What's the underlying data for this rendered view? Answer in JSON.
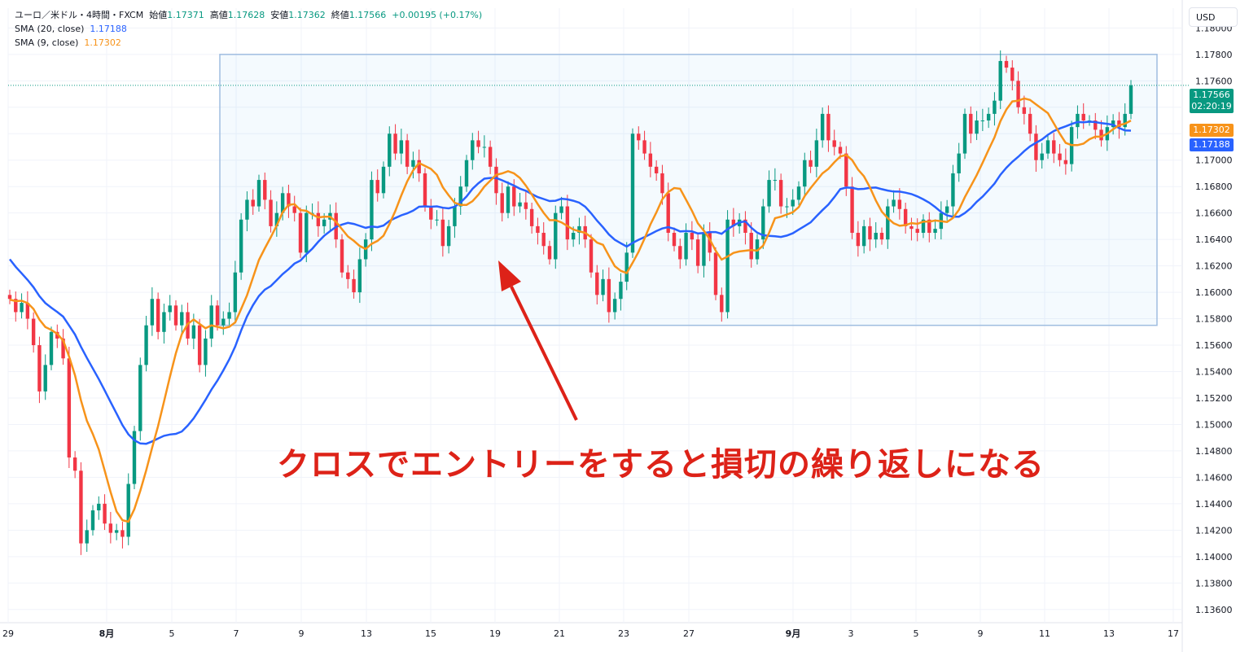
{
  "legend": {
    "symbol": "ユーロ／米ドル・4時間・FXCM",
    "open_label": "始値",
    "open": "1.17371",
    "high_label": "高値",
    "high": "1.17628",
    "low_label": "安値",
    "low": "1.17362",
    "close_label": "終値",
    "close": "1.17566",
    "change": "+0.00195 (+0.17%)",
    "sma20_label": "SMA (20, close)",
    "sma20_value": "1.17188",
    "sma9_label": "SMA (9, close)",
    "sma9_value": "1.17302"
  },
  "currency_button": "USD",
  "price_tags": {
    "last_price": "1.17566",
    "countdown": "02:20:19",
    "sma9": "1.17302",
    "sma20": "1.17188"
  },
  "annotation": "クロスでエントリーをすると損切の繰り返しになる",
  "colors": {
    "up": "#089981",
    "down": "#f23645",
    "sma20": "#2962ff",
    "sma9": "#f7931a",
    "annotation": "#dd2218",
    "range_box": "#9fbde0"
  },
  "chart_data": {
    "type": "candlestick",
    "title": "",
    "xlabel": "",
    "ylabel": "",
    "ylim": [
      1.135,
      1.1815
    ],
    "grid": true,
    "y_ticks": [
      "1.18000",
      "1.17800",
      "1.17600",
      "1.17400",
      "1.17200",
      "1.17000",
      "1.16800",
      "1.16600",
      "1.16400",
      "1.16200",
      "1.16000",
      "1.15800",
      "1.15600",
      "1.15400",
      "1.15200",
      "1.15000",
      "1.14800",
      "1.14600",
      "1.14400",
      "1.14200",
      "1.14000",
      "1.13800",
      "1.13600"
    ],
    "x_ticks": [
      "29",
      "8月",
      "5",
      "7",
      "9",
      "13",
      "15",
      "19",
      "21",
      "23",
      "27",
      "9月",
      "3",
      "5",
      "9",
      "11",
      "13",
      "17"
    ],
    "range_box": {
      "x_start_label": "7",
      "x_end_label": "17",
      "high": 1.178,
      "low": 1.1575
    },
    "series": [
      {
        "name": "SMA (20, close)",
        "last": 1.17188
      },
      {
        "name": "SMA (9, close)",
        "last": 1.17302
      }
    ],
    "closes": [
      1.1595,
      1.1585,
      1.1592,
      1.158,
      1.156,
      1.1525,
      1.1545,
      1.157,
      1.1565,
      1.155,
      1.1475,
      1.1465,
      1.141,
      1.142,
      1.1435,
      1.144,
      1.1425,
      1.1418,
      1.142,
      1.1415,
      1.1455,
      1.1495,
      1.1545,
      1.1575,
      1.1595,
      1.157,
      1.1585,
      1.159,
      1.1575,
      1.1585,
      1.1565,
      1.1575,
      1.1545,
      1.1565,
      1.159,
      1.1575,
      1.158,
      1.1585,
      1.1615,
      1.1655,
      1.167,
      1.1665,
      1.1685,
      1.167,
      1.165,
      1.166,
      1.1675,
      1.1665,
      1.166,
      1.163,
      1.166,
      1.166,
      1.165,
      1.1655,
      1.166,
      1.164,
      1.1615,
      1.161,
      1.16,
      1.1625,
      1.164,
      1.1685,
      1.1675,
      1.1695,
      1.172,
      1.1705,
      1.1715,
      1.1695,
      1.17,
      1.169,
      1.1665,
      1.1655,
      1.1655,
      1.1635,
      1.165,
      1.1665,
      1.168,
      1.17,
      1.1715,
      1.171,
      1.171,
      1.1695,
      1.1675,
      1.166,
      1.168,
      1.1665,
      1.1668,
      1.1663,
      1.165,
      1.1645,
      1.1635,
      1.1625,
      1.166,
      1.1665,
      1.164,
      1.1645,
      1.165,
      1.164,
      1.1615,
      1.1598,
      1.161,
      1.1585,
      1.1595,
      1.1608,
      1.163,
      1.172,
      1.1715,
      1.1705,
      1.1695,
      1.169,
      1.1675,
      1.1645,
      1.1635,
      1.1625,
      1.1645,
      1.164,
      1.162,
      1.1645,
      1.163,
      1.1598,
      1.1585,
      1.1655,
      1.165,
      1.1655,
      1.1645,
      1.1625,
      1.164,
      1.1665,
      1.1685,
      1.1685,
      1.1665,
      1.1665,
      1.167,
      1.168,
      1.17,
      1.1695,
      1.1715,
      1.1735,
      1.1715,
      1.171,
      1.1705,
      1.168,
      1.1645,
      1.1635,
      1.165,
      1.164,
      1.1645,
      1.164,
      1.1665,
      1.167,
      1.1663,
      1.165,
      1.1648,
      1.1645,
      1.1655,
      1.1645,
      1.1648,
      1.166,
      1.1665,
      1.169,
      1.1705,
      1.1735,
      1.172,
      1.173,
      1.173,
      1.1735,
      1.1745,
      1.1775,
      1.177,
      1.176,
      1.174,
      1.1735,
      1.172,
      1.17,
      1.1705,
      1.1715,
      1.1705,
      1.17,
      1.1697,
      1.1725,
      1.1735,
      1.173,
      1.173,
      1.1723,
      1.1715,
      1.1725,
      1.173,
      1.1725,
      1.1735,
      1.17566
    ]
  }
}
